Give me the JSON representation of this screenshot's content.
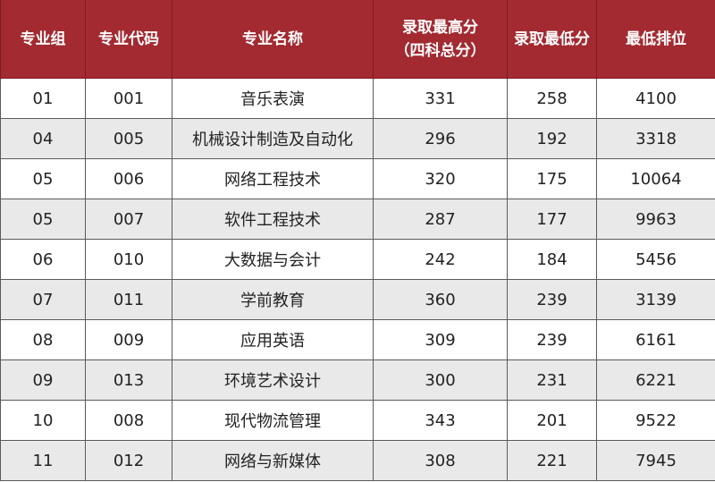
{
  "table": {
    "headers": [
      "专业组",
      "专业代码",
      "专业名称",
      "录取最高分",
      "录取最低分",
      "最低排位"
    ],
    "header_sub": "（四科总分）",
    "header_color": "#a32a31",
    "rows": [
      [
        "01",
        "001",
        "音乐表演",
        "331",
        "258",
        "4100"
      ],
      [
        "04",
        "005",
        "机械设计制造及自动化",
        "296",
        "192",
        "3318"
      ],
      [
        "05",
        "006",
        "网络工程技术",
        "320",
        "175",
        "10064"
      ],
      [
        "05",
        "007",
        "软件工程技术",
        "287",
        "177",
        "9963"
      ],
      [
        "06",
        "010",
        "大数据与会计",
        "242",
        "184",
        "5456"
      ],
      [
        "07",
        "011",
        "学前教育",
        "360",
        "239",
        "3139"
      ],
      [
        "08",
        "009",
        "应用英语",
        "309",
        "239",
        "6161"
      ],
      [
        "09",
        "013",
        "环境艺术设计",
        "300",
        "231",
        "6221"
      ],
      [
        "10",
        "008",
        "现代物流管理",
        "343",
        "201",
        "9522"
      ],
      [
        "11",
        "012",
        "网络与新媒体",
        "308",
        "221",
        "7945"
      ]
    ]
  }
}
